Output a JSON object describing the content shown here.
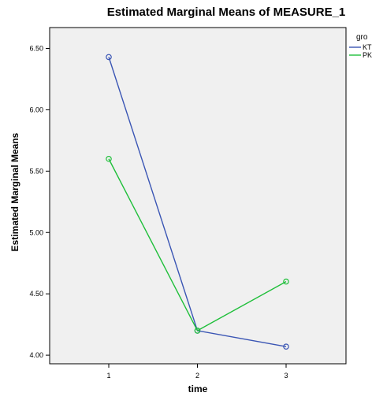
{
  "chart_data": {
    "type": "line",
    "title": "Estimated Marginal Means of MEASURE_1",
    "xlabel": "time",
    "ylabel": "Estimated Marginal Means",
    "categories": [
      "1",
      "2",
      "3"
    ],
    "y_ticks": [
      "4.00",
      "4.50",
      "5.00",
      "5.50",
      "6.00",
      "6.50"
    ],
    "ylim": [
      3.93,
      6.67
    ],
    "legend_title": "gro",
    "legend_position": "right",
    "grid": false,
    "background": "#f0f0f0",
    "series": [
      {
        "name": "KT",
        "color": "#3a55b4",
        "values": [
          6.43,
          4.2,
          4.07
        ]
      },
      {
        "name": "PK",
        "color": "#1fbf3a",
        "values": [
          5.6,
          4.2,
          4.6
        ]
      }
    ]
  }
}
